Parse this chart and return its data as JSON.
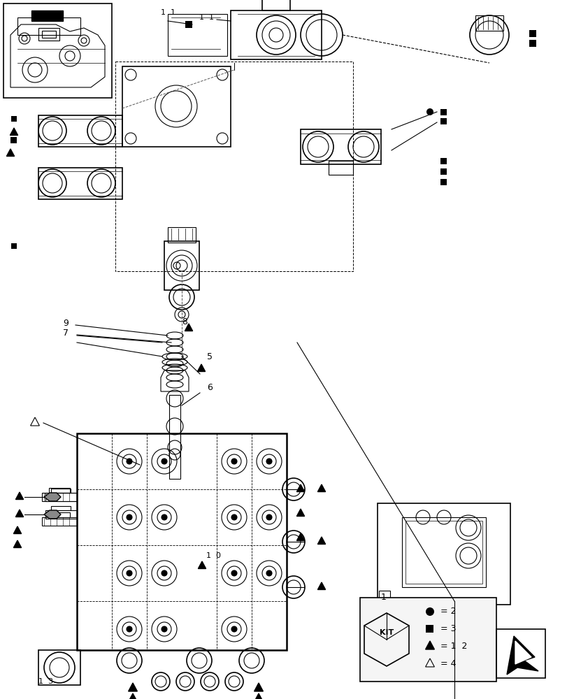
{
  "title": "",
  "background_color": "#ffffff",
  "line_color": "#000000",
  "light_gray": "#cccccc",
  "kit_legend": {
    "circle_label": "= 2",
    "square_label": "= 3",
    "filled_triangle_label": "= 1  2",
    "open_triangle_label": "= 4"
  },
  "part_numbers": {
    "label_11": "1 1",
    "label_13": "1 3",
    "label_10": "1 0",
    "label_5": "5",
    "label_6": "6",
    "label_7": "7",
    "label_8": "8",
    "label_9": "9",
    "label_1": "1"
  }
}
